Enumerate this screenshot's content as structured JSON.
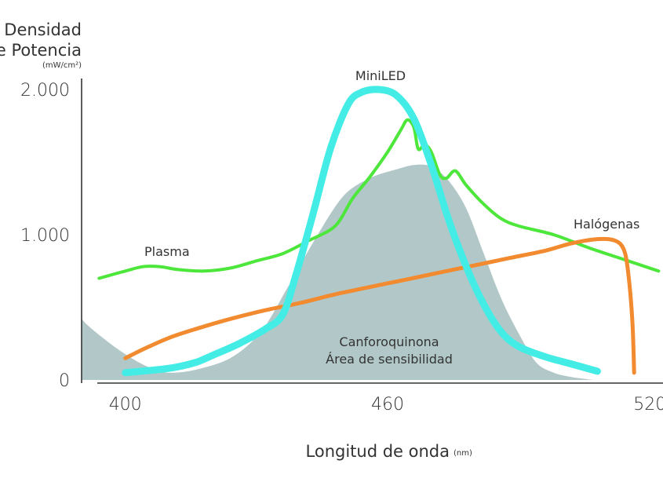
{
  "chart_data": {
    "type": "line",
    "ylabel_lines": [
      "Densidad",
      "de Potencia"
    ],
    "ylabel_unit": "(mW/cm²)",
    "xlabel": "Longitud de onda",
    "xlabel_unit": "(nm)",
    "xlim": [
      390,
      523
    ],
    "ylim": [
      0,
      2000
    ],
    "x_ticks": [
      400,
      460,
      520
    ],
    "x_tick_labels": [
      "400",
      "460",
      "520"
    ],
    "y_ticks": [
      0,
      1000,
      2000
    ],
    "y_tick_labels": [
      "0",
      "1.000",
      "2.000"
    ],
    "grid": false,
    "colors": {
      "area": "#b2c8c8",
      "plasma": "#4de63a",
      "halogenas": "#f28a30",
      "miniled": "#44ece6",
      "axis": "#333333"
    },
    "area_label_lines": [
      "Canforoquinona",
      "Área de sensibilidad"
    ],
    "area": {
      "name": "Canforoquinona",
      "points": [
        [
          390,
          420
        ],
        [
          392,
          360
        ],
        [
          397,
          240
        ],
        [
          402,
          140
        ],
        [
          406,
          80
        ],
        [
          410,
          50
        ],
        [
          416,
          70
        ],
        [
          424,
          150
        ],
        [
          431,
          330
        ],
        [
          437,
          630
        ],
        [
          444,
          1000
        ],
        [
          450,
          1270
        ],
        [
          456,
          1390
        ],
        [
          462,
          1450
        ],
        [
          466,
          1480
        ],
        [
          470,
          1470
        ],
        [
          474,
          1370
        ],
        [
          478,
          1180
        ],
        [
          482,
          870
        ],
        [
          486,
          560
        ],
        [
          490,
          320
        ],
        [
          494,
          120
        ],
        [
          498,
          50
        ],
        [
          502,
          20
        ],
        [
          507,
          0
        ]
      ]
    },
    "series": [
      {
        "key": "plasma",
        "points": [
          [
            394,
            700
          ],
          [
            400,
            750
          ],
          [
            404,
            780
          ],
          [
            408,
            780
          ],
          [
            412,
            760
          ],
          [
            418,
            750
          ],
          [
            424,
            770
          ],
          [
            430,
            820
          ],
          [
            436,
            870
          ],
          [
            442,
            960
          ],
          [
            448,
            1060
          ],
          [
            452,
            1250
          ],
          [
            456,
            1400
          ],
          [
            460,
            1570
          ],
          [
            463,
            1720
          ],
          [
            464.5,
            1790
          ],
          [
            466,
            1740
          ],
          [
            467,
            1590
          ],
          [
            468.5,
            1620
          ],
          [
            470,
            1570
          ],
          [
            472,
            1410
          ],
          [
            473.5,
            1390
          ],
          [
            475.5,
            1440
          ],
          [
            478,
            1340
          ],
          [
            482,
            1210
          ],
          [
            486,
            1110
          ],
          [
            490,
            1060
          ],
          [
            498,
            1000
          ],
          [
            506,
            910
          ],
          [
            514,
            830
          ],
          [
            522,
            750
          ]
        ]
      },
      {
        "key": "halogenas",
        "points": [
          [
            400,
            150
          ],
          [
            404,
            210
          ],
          [
            410,
            290
          ],
          [
            416,
            350
          ],
          [
            424,
            420
          ],
          [
            432,
            480
          ],
          [
            440,
            530
          ],
          [
            448,
            590
          ],
          [
            456,
            640
          ],
          [
            464,
            690
          ],
          [
            472,
            740
          ],
          [
            480,
            790
          ],
          [
            488,
            840
          ],
          [
            496,
            890
          ],
          [
            502,
            940
          ],
          [
            508,
            970
          ],
          [
            512,
            960
          ],
          [
            514,
            900
          ],
          [
            515,
            750
          ],
          [
            516,
            400
          ],
          [
            516.4,
            50
          ]
        ]
      },
      {
        "key": "miniled",
        "points": [
          [
            400,
            50
          ],
          [
            410,
            80
          ],
          [
            416,
            120
          ],
          [
            420,
            170
          ],
          [
            426,
            250
          ],
          [
            432,
            350
          ],
          [
            436,
            450
          ],
          [
            439,
            720
          ],
          [
            443,
            1150
          ],
          [
            447,
            1600
          ],
          [
            451,
            1900
          ],
          [
            454,
            1980
          ],
          [
            458,
            2000
          ],
          [
            462,
            1960
          ],
          [
            466,
            1800
          ],
          [
            470,
            1480
          ],
          [
            474,
            1100
          ],
          [
            478,
            780
          ],
          [
            482,
            520
          ],
          [
            486,
            330
          ],
          [
            490,
            230
          ],
          [
            496,
            160
          ],
          [
            502,
            110
          ],
          [
            508,
            60
          ]
        ]
      }
    ],
    "annotations": [
      {
        "key": "plasma",
        "text": "Plasma"
      },
      {
        "key": "miniled",
        "text": "MiniLED"
      },
      {
        "key": "halogenas",
        "text": "Halógenas"
      }
    ]
  }
}
